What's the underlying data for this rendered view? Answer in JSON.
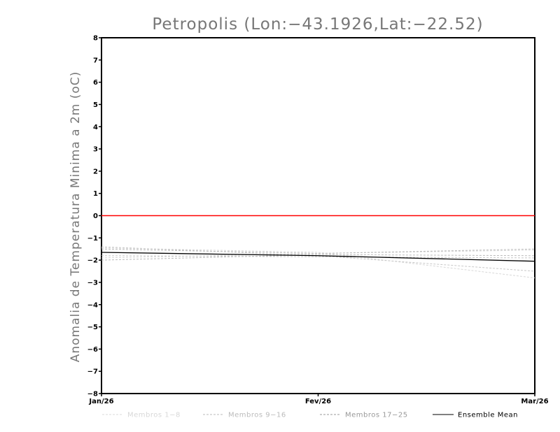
{
  "chart_data": {
    "type": "line",
    "title": "Petropolis (Lon:−43.1926,Lat:−22.52)",
    "xlabel": "",
    "ylabel": "Anomalia de Temperatura Minima a 2m (oC)",
    "x": [
      "Jan/26",
      "Fev/26",
      "Mar/26"
    ],
    "ylim": [
      -8,
      8
    ],
    "yticks": [
      8,
      7,
      6,
      5,
      4,
      3,
      2,
      1,
      0,
      -1,
      -2,
      -3,
      -4,
      -5,
      -6,
      -7,
      -8
    ],
    "ytick_labels": [
      "8",
      "7",
      "6",
      "5",
      "4",
      "3",
      "2",
      "1",
      "0",
      "−1",
      "−2",
      "−3",
      "−4",
      "−5",
      "−6",
      "−7",
      "−8"
    ],
    "grid": false,
    "reference_line": {
      "y": 0,
      "color": "#ff0000"
    },
    "member_series": [
      {
        "group": 1,
        "values": [
          -1.45,
          -1.65,
          -2.8
        ]
      },
      {
        "group": 1,
        "values": [
          -1.9,
          -1.7,
          -1.55
        ]
      },
      {
        "group": 2,
        "values": [
          -1.4,
          -1.8,
          -2.5
        ]
      },
      {
        "group": 2,
        "values": [
          -1.8,
          -1.85,
          -1.9
        ]
      },
      {
        "group": 3,
        "values": [
          -2.0,
          -1.75,
          -1.8
        ]
      },
      {
        "group": 3,
        "values": [
          -1.5,
          -1.7,
          -1.5
        ]
      }
    ],
    "ensemble_mean": {
      "name": "Ensemble Mean",
      "values": [
        -1.65,
        -1.8,
        -2.05
      ]
    },
    "legend": [
      {
        "label": "Membros 1−8",
        "color": "#d8d8d8",
        "style": "dashed"
      },
      {
        "label": "Membros 9−16",
        "color": "#bbbbbb",
        "style": "dashed"
      },
      {
        "label": "Membros 17−25",
        "color": "#999999",
        "style": "dashed"
      },
      {
        "label": "Ensemble Mean",
        "color": "#000000",
        "style": "solid"
      }
    ],
    "legend_position": "bottom",
    "colors": {
      "group1": "#d8d8d8",
      "group2": "#c8c8c8",
      "group3": "#bbbbbb",
      "mean": "#000000",
      "zero": "#ff0000",
      "axis": "#000000",
      "title": "#777777"
    }
  }
}
